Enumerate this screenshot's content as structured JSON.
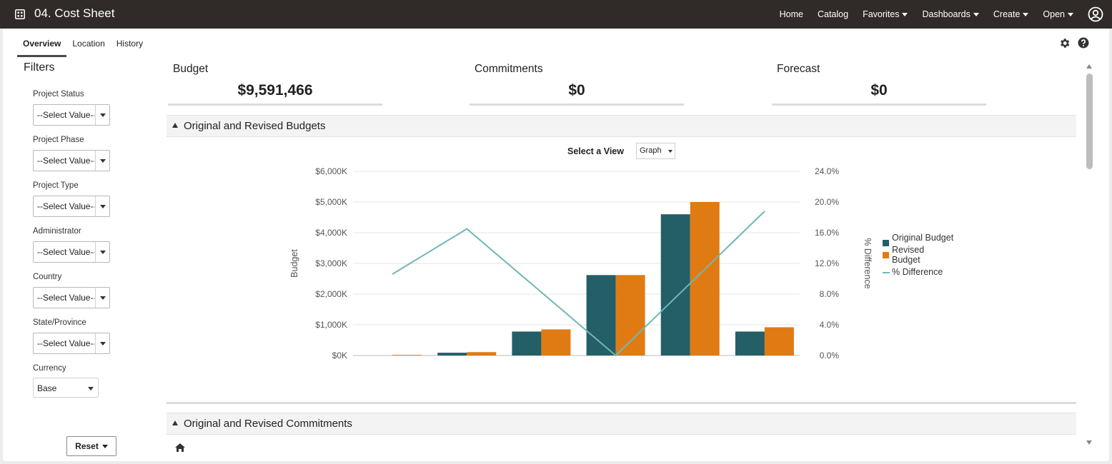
{
  "app": {
    "title": "04. Cost Sheet"
  },
  "topnav": {
    "items": [
      {
        "label": "Home",
        "dropdown": false
      },
      {
        "label": "Catalog",
        "dropdown": false
      },
      {
        "label": "Favorites",
        "dropdown": true
      },
      {
        "label": "Dashboards",
        "dropdown": true
      },
      {
        "label": "Create",
        "dropdown": true
      },
      {
        "label": "Open",
        "dropdown": true
      }
    ]
  },
  "tabs": [
    {
      "label": "Overview",
      "active": true
    },
    {
      "label": "Location",
      "active": false
    },
    {
      "label": "History",
      "active": false
    }
  ],
  "filters": {
    "title": "Filters",
    "fields": [
      {
        "label": "Project Status",
        "value": "--Select Value--"
      },
      {
        "label": "Project Phase",
        "value": "--Select Value--"
      },
      {
        "label": "Project Type",
        "value": "--Select Value--"
      },
      {
        "label": "Administrator",
        "value": "--Select Value--"
      },
      {
        "label": "Country",
        "value": "--Select Value--"
      },
      {
        "label": "State/Province",
        "value": "--Select Value--"
      }
    ],
    "currency": {
      "label": "Currency",
      "value": "Base"
    },
    "reset_label": "Reset"
  },
  "kpis": [
    {
      "label": "Budget",
      "value": "$9,591,466"
    },
    {
      "label": "Commitments",
      "value": "$0"
    },
    {
      "label": "Forecast",
      "value": "$0"
    }
  ],
  "sections": {
    "budgets_title": "Original and Revised Budgets",
    "commitments_title": "Original and Revised Commitments"
  },
  "view": {
    "label": "Select a View",
    "value": "Graph"
  },
  "chart_data": {
    "type": "bar",
    "categories": [
      "",
      "",
      "",
      "",
      "",
      ""
    ],
    "ylabel": "Budget",
    "y2label": "% Difference",
    "ylim": [
      0,
      6000
    ],
    "y2lim": [
      0,
      24
    ],
    "y_ticks": [
      "$0K",
      "$1,000K",
      "$2,000K",
      "$3,000K",
      "$4,000K",
      "$5,000K",
      "$6,000K"
    ],
    "y2_ticks": [
      "0.0%",
      "4.0%",
      "8.0%",
      "12.0%",
      "16.0%",
      "20.0%",
      "24.0%"
    ],
    "series": [
      {
        "name": "Original Budget",
        "type": "bar",
        "color": "#245e66",
        "values": [
          0,
          90,
          780,
          2620,
          4600,
          780
        ]
      },
      {
        "name": "Revised Budget",
        "type": "bar",
        "color": "#e07b14",
        "values": [
          20,
          110,
          850,
          2620,
          5000,
          920
        ]
      },
      {
        "name": "% Difference",
        "type": "line",
        "axis": "right",
        "color": "#6fb7b5",
        "values": [
          10.6,
          16.5,
          null,
          0.0,
          null,
          18.8
        ]
      }
    ],
    "legend_position": "right",
    "grid": true
  },
  "colors": {
    "topbar": "#302b28",
    "teal": "#245e66",
    "orange": "#e07b14",
    "line": "#6fb7b5"
  }
}
